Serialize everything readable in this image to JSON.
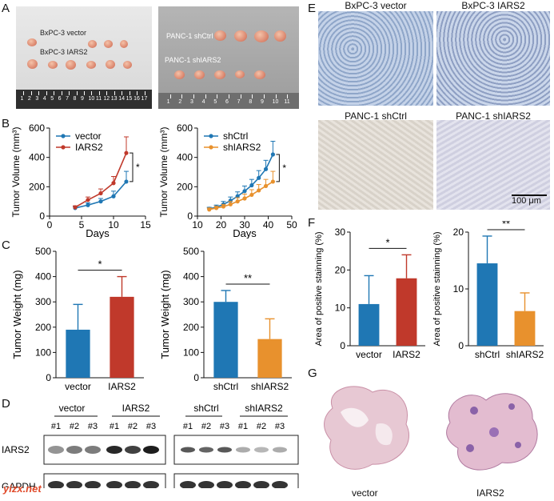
{
  "panel_labels": {
    "A": "A",
    "B": "B",
    "C": "C",
    "D": "D",
    "E": "E",
    "F": "F",
    "G": "G"
  },
  "panelA": {
    "left_labels": [
      "BxPC-3 vector",
      "BxPC-3 IARS2"
    ],
    "right_labels": [
      "PANC-1 shCtrl",
      "PANC-1 shIARS2"
    ],
    "ruler_left": [
      "1",
      "2",
      "3",
      "4",
      "5",
      "6",
      "7",
      "8",
      "9",
      "10",
      "11",
      "12",
      "13",
      "14",
      "15",
      "16",
      "17"
    ],
    "ruler_right": [
      "1",
      "2",
      "3",
      "4",
      "5",
      "6",
      "7",
      "8",
      "9",
      "10",
      "11"
    ]
  },
  "panelE": {
    "labels": [
      "BxPC-3 vector",
      "BxPC-3 IARS2",
      "PANC-1 shCtrl",
      "PANC-1 shIARS2"
    ],
    "scalebar": "100 μm"
  },
  "panelD": {
    "left_groups": [
      "vector",
      "IARS2"
    ],
    "right_groups": [
      "shCtrl",
      "shIARS2"
    ],
    "lanes": [
      "#1",
      "#2",
      "#3",
      "#1",
      "#2",
      "#3"
    ],
    "rows": [
      "IARS2",
      "GAPDH"
    ]
  },
  "panelG": {
    "labels": [
      "vector",
      "IARS2"
    ]
  },
  "watermark": "yizx.net",
  "chart_data": [
    {
      "id": "B1",
      "type": "line",
      "xlabel": "Days",
      "ylabel": "Tumor Volume (mm³)",
      "xlim": [
        0,
        15
      ],
      "ylim": [
        0,
        600
      ],
      "xticks": [
        "0",
        "5",
        "10",
        "15"
      ],
      "yticks": [
        "0",
        "200",
        "400",
        "600"
      ],
      "legend": "top-left",
      "annotation": "*",
      "series": [
        {
          "name": "vector",
          "color": "#1f77b4",
          "x": [
            4,
            6,
            8,
            10,
            12
          ],
          "y": [
            55,
            75,
            100,
            135,
            235
          ],
          "err": [
            10,
            15,
            20,
            35,
            70
          ]
        },
        {
          "name": "IARS2",
          "color": "#c0392b",
          "x": [
            4,
            6,
            8,
            10,
            12
          ],
          "y": [
            60,
            110,
            155,
            225,
            430
          ],
          "err": [
            10,
            20,
            30,
            45,
            110
          ]
        }
      ]
    },
    {
      "id": "B2",
      "type": "line",
      "xlabel": "Days",
      "ylabel": "Tumor Volume (mm³)",
      "xlim": [
        10,
        50
      ],
      "ylim": [
        0,
        600
      ],
      "xticks": [
        "10",
        "20",
        "30",
        "40",
        "50"
      ],
      "yticks": [
        "0",
        "200",
        "400",
        "600"
      ],
      "legend": "top-left",
      "annotation": "*",
      "series": [
        {
          "name": "shCtrl",
          "color": "#1f77b4",
          "x": [
            15,
            18,
            21,
            24,
            27,
            30,
            33,
            36,
            39,
            42
          ],
          "y": [
            50,
            60,
            80,
            105,
            135,
            170,
            210,
            260,
            320,
            420
          ],
          "err": [
            10,
            15,
            20,
            25,
            30,
            35,
            40,
            50,
            60,
            90
          ]
        },
        {
          "name": "shIARS2",
          "color": "#e8912d",
          "x": [
            15,
            18,
            21,
            24,
            27,
            30,
            33,
            36,
            39,
            42
          ],
          "y": [
            45,
            55,
            65,
            80,
            100,
            120,
            145,
            175,
            205,
            235
          ],
          "err": [
            10,
            12,
            15,
            20,
            25,
            30,
            35,
            40,
            45,
            70
          ]
        }
      ]
    },
    {
      "id": "C1",
      "type": "bar",
      "categories": [
        "vector",
        "IARS2"
      ],
      "values": [
        190,
        320
      ],
      "err": [
        100,
        80
      ],
      "colors": [
        "#1f77b4",
        "#c0392b"
      ],
      "ylabel": "Tumor Weight (mg)",
      "ylim": [
        0,
        500
      ],
      "yticks": [
        "0",
        "100",
        "200",
        "300",
        "400",
        "500"
      ],
      "annotation": "*"
    },
    {
      "id": "C2",
      "type": "bar",
      "categories": [
        "shCtrl",
        "shIARS2"
      ],
      "values": [
        300,
        153
      ],
      "err": [
        45,
        80
      ],
      "colors": [
        "#1f77b4",
        "#e8912d"
      ],
      "ylabel": "Tumor Weight (mg)",
      "ylim": [
        0,
        500
      ],
      "yticks": [
        "0",
        "100",
        "200",
        "300",
        "400",
        "500"
      ],
      "annotation": "**"
    },
    {
      "id": "F1",
      "type": "bar",
      "categories": [
        "vector",
        "IARS2"
      ],
      "values": [
        11,
        17.8
      ],
      "err": [
        7.5,
        6.2
      ],
      "colors": [
        "#1f77b4",
        "#c0392b"
      ],
      "ylabel": "Area of positive stainning (%)",
      "ylim": [
        0,
        30
      ],
      "yticks": [
        "0",
        "10",
        "20",
        "30"
      ],
      "annotation": "*"
    },
    {
      "id": "F2",
      "type": "bar",
      "categories": [
        "shCtrl",
        "shIARS2"
      ],
      "values": [
        14.5,
        6.1
      ],
      "err": [
        4.8,
        3.2
      ],
      "colors": [
        "#1f77b4",
        "#e8912d"
      ],
      "ylabel": "Area of positive stainning (%)",
      "ylim": [
        0,
        20
      ],
      "yticks": [
        "0",
        "10",
        "20"
      ],
      "annotation": "**"
    }
  ]
}
